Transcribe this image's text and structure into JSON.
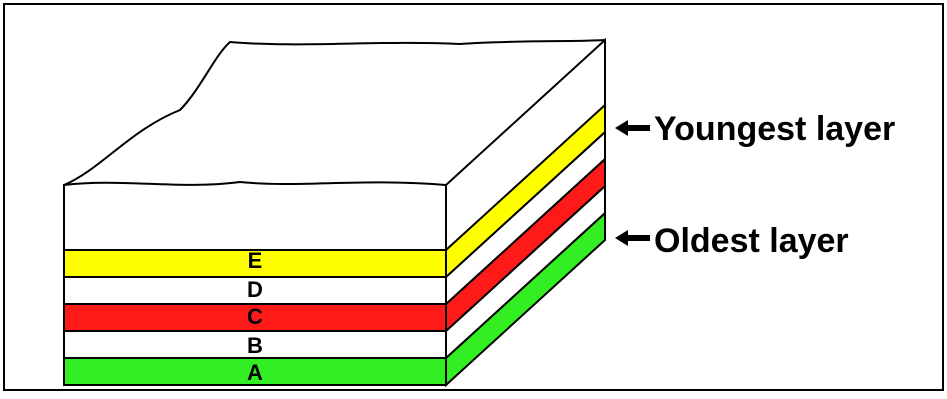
{
  "diagram": {
    "layers": [
      {
        "id": "A",
        "label": "A",
        "color": "#33ee22"
      },
      {
        "id": "B",
        "label": "B",
        "color": "#ffffff"
      },
      {
        "id": "C",
        "label": "C",
        "color": "#ff1a1a"
      },
      {
        "id": "D",
        "label": "D",
        "color": "#ffffff"
      },
      {
        "id": "E",
        "label": "E",
        "color": "#ffff00"
      }
    ],
    "top_block_color": "#ffffff",
    "outline_color": "#000000",
    "callouts": {
      "youngest": {
        "text": "Youngest layer",
        "points_to": "E"
      },
      "oldest": {
        "text": "Oldest layer",
        "points_to": "A"
      }
    }
  }
}
